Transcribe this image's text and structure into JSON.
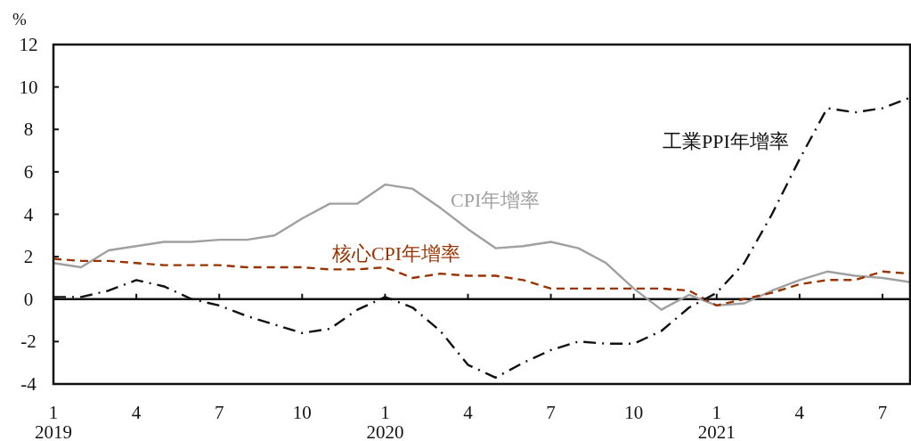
{
  "chart_data": {
    "type": "line",
    "ylabel": "%",
    "x": [
      "2019-01",
      "2019-02",
      "2019-03",
      "2019-04",
      "2019-05",
      "2019-06",
      "2019-07",
      "2019-08",
      "2019-09",
      "2019-10",
      "2019-11",
      "2019-12",
      "2020-01",
      "2020-02",
      "2020-03",
      "2020-04",
      "2020-05",
      "2020-06",
      "2020-07",
      "2020-08",
      "2020-09",
      "2020-10",
      "2020-11",
      "2020-12",
      "2021-01",
      "2021-02",
      "2021-03",
      "2021-04",
      "2021-05",
      "2021-06",
      "2021-07",
      "2021-08"
    ],
    "series": [
      {
        "name": "CPI年增率",
        "color": "#a0a0a0",
        "line_style": "solid",
        "values": [
          1.7,
          1.5,
          2.3,
          2.5,
          2.7,
          2.7,
          2.8,
          2.8,
          3.0,
          3.8,
          4.5,
          4.5,
          5.4,
          5.2,
          4.3,
          3.3,
          2.4,
          2.5,
          2.7,
          2.4,
          1.7,
          0.5,
          -0.5,
          0.2,
          -0.3,
          -0.2,
          0.4,
          0.9,
          1.3,
          1.1,
          1.0,
          0.8
        ]
      },
      {
        "name": "核心CPI年增率",
        "color": "#993300",
        "line_style": "dashed",
        "values": [
          1.9,
          1.8,
          1.8,
          1.7,
          1.6,
          1.6,
          1.6,
          1.5,
          1.5,
          1.5,
          1.4,
          1.4,
          1.5,
          1.0,
          1.2,
          1.1,
          1.1,
          0.9,
          0.5,
          0.5,
          0.5,
          0.5,
          0.5,
          0.4,
          -0.3,
          0.0,
          0.3,
          0.7,
          0.9,
          0.9,
          1.3,
          1.2
        ]
      },
      {
        "name": "工業PPI年增率",
        "color": "#111111",
        "line_style": "dashdot",
        "values": [
          0.1,
          0.1,
          0.4,
          0.9,
          0.6,
          0.0,
          -0.3,
          -0.8,
          -1.2,
          -1.6,
          -1.4,
          -0.5,
          0.1,
          -0.4,
          -1.5,
          -3.1,
          -3.7,
          -3.0,
          -2.4,
          -2.0,
          -2.1,
          -2.1,
          -1.5,
          -0.4,
          0.3,
          1.7,
          4.0,
          6.6,
          9.0,
          8.8,
          9.0,
          9.5
        ]
      }
    ],
    "xlim": [
      "2019-01",
      "2021-08"
    ],
    "xticks": [
      {
        "value": "2019-01",
        "label": "1\n2019"
      },
      {
        "value": "2019-04",
        "label": "4"
      },
      {
        "value": "2019-07",
        "label": "7"
      },
      {
        "value": "2019-10",
        "label": "10"
      },
      {
        "value": "2020-01",
        "label": "1\n2020"
      },
      {
        "value": "2020-04",
        "label": "4"
      },
      {
        "value": "2020-07",
        "label": "7"
      },
      {
        "value": "2020-10",
        "label": "10"
      },
      {
        "value": "2021-01",
        "label": "1\n2021"
      },
      {
        "value": "2021-04",
        "label": "4"
      },
      {
        "value": "2021-07",
        "label": "7"
      }
    ],
    "ylim": [
      -4,
      12
    ],
    "yticks": [
      -4,
      -2,
      0,
      2,
      4,
      6,
      8,
      10,
      12
    ],
    "ref_lines": [
      {
        "axis": "y",
        "value": 0
      }
    ]
  }
}
